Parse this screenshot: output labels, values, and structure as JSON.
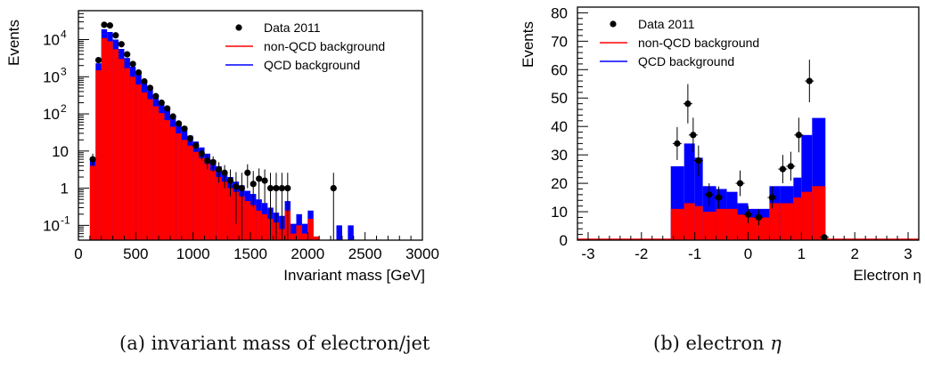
{
  "captions": {
    "a_label": "(a)",
    "a_text": "invariant mass of electron/jet",
    "b_label": "(b)",
    "b_text": "electron",
    "b_symbol": "η"
  },
  "colors": {
    "non_qcd": "#ff0000",
    "qcd": "#0000ff",
    "data": "#000000"
  },
  "chart_data": [
    {
      "type": "bar",
      "stacked": true,
      "xlabel": "Invariant mass [GeV]",
      "ylabel": "Events",
      "xlim": [
        0,
        3000
      ],
      "ylim": [
        0.04,
        60000
      ],
      "log_y": true,
      "grid": false,
      "legend_position": "top-right",
      "x_ticks": [
        "0",
        "500",
        "1000",
        "1500",
        "2000",
        "2500",
        "3000"
      ],
      "y_ticks": [
        {
          "base": "10",
          "exp": "-1",
          "plain": ""
        },
        {
          "base": "",
          "exp": "",
          "plain": "1"
        },
        {
          "base": "",
          "exp": "",
          "plain": "10"
        },
        {
          "base": "10",
          "exp": "2",
          "plain": ""
        },
        {
          "base": "10",
          "exp": "3",
          "plain": ""
        },
        {
          "base": "10",
          "exp": "4",
          "plain": ""
        }
      ],
      "legend": [
        "Data 2011",
        "non-QCD background",
        "QCD background"
      ],
      "bin_width": 50,
      "bin_low_edges": [
        100,
        150,
        200,
        250,
        300,
        350,
        400,
        450,
        500,
        550,
        600,
        650,
        700,
        750,
        800,
        850,
        900,
        950,
        1000,
        1050,
        1100,
        1150,
        1200,
        1250,
        1300,
        1350,
        1400,
        1450,
        1500,
        1550,
        1600,
        1650,
        1700,
        1750,
        1800,
        1850,
        1900,
        1950,
        2000,
        2050,
        2100,
        2150,
        2200,
        2250,
        2300,
        2350,
        2400
      ],
      "series": [
        {
          "name": "non-QCD background",
          "values": [
            4,
            1500,
            11000,
            9000,
            5500,
            3000,
            1700,
            1000,
            620,
            380,
            250,
            160,
            105,
            68,
            45,
            30,
            20,
            14,
            9.5,
            6.5,
            4.5,
            3.0,
            2.0,
            1.5,
            1.0,
            0.8,
            0.6,
            0.45,
            0.35,
            0.25,
            0.2,
            0.15,
            0.12,
            0.08,
            0.25,
            0.06,
            0.1,
            0.06,
            0.15,
            0.05,
            0.0,
            0.0,
            0.0,
            0.0,
            0.0,
            0.0,
            0.0
          ]
        },
        {
          "name": "QCD background",
          "values": [
            1.5,
            800,
            8000,
            7000,
            4500,
            2600,
            1500,
            850,
            550,
            330,
            220,
            140,
            95,
            60,
            40,
            27,
            18,
            12,
            8.5,
            6.0,
            4.0,
            2.8,
            1.9,
            1.3,
            1.0,
            0.7,
            0.6,
            0.4,
            0.35,
            0.25,
            0.2,
            0.15,
            0.1,
            0.1,
            0.2,
            0.05,
            0.1,
            0.05,
            0.1,
            0.0,
            0.0,
            0.0,
            0.0,
            0.1,
            0.0,
            0.1,
            0.0
          ]
        }
      ],
      "data_points": {
        "name": "Data 2011",
        "x": [
          125,
          175,
          225,
          275,
          325,
          375,
          425,
          475,
          525,
          575,
          625,
          675,
          725,
          775,
          825,
          875,
          925,
          975,
          1025,
          1075,
          1125,
          1175,
          1225,
          1275,
          1325,
          1375,
          1425,
          1475,
          1525,
          1575,
          1625,
          1675,
          1725,
          1775,
          1825,
          2225
        ],
        "y": [
          6,
          2800,
          25000,
          24000,
          13000,
          7500,
          4000,
          2200,
          1300,
          750,
          500,
          300,
          200,
          140,
          85,
          55,
          40,
          22,
          14,
          8.5,
          5.5,
          5.0,
          3.2,
          2.6,
          1.6,
          1.1,
          1.0,
          2.6,
          1.3,
          1.8,
          1.6,
          1.0,
          1.0,
          1.0,
          1.0,
          1.0
        ],
        "y_err_low": [
          2,
          55,
          160,
          160,
          115,
          86,
          63,
          47,
          36,
          27,
          22,
          17,
          14,
          12,
          9,
          7.4,
          6.3,
          4.7,
          3.7,
          2.9,
          2.3,
          2.2,
          1.8,
          1.6,
          1.0,
          0.99,
          0.99,
          1.6,
          0.99,
          1.3,
          1.2,
          0.99,
          0.99,
          0.99,
          0.99,
          0.99
        ],
        "y_err_high": [
          2.5,
          55,
          160,
          160,
          115,
          86,
          63,
          47,
          36,
          27,
          22,
          17,
          14,
          12,
          9,
          7.4,
          6.3,
          4.7,
          3.7,
          2.9,
          2.3,
          2.2,
          1.8,
          1.6,
          1.6,
          1.6,
          1.6,
          1.8,
          1.6,
          1.6,
          1.6,
          1.6,
          1.6,
          1.6,
          1.6,
          1.6
        ]
      }
    },
    {
      "type": "bar",
      "stacked": true,
      "xlabel": "Electron η",
      "ylabel": "Events",
      "xlim": [
        -3.2,
        3.2
      ],
      "ylim": [
        0,
        82
      ],
      "log_y": false,
      "grid": false,
      "legend_position": "top-left",
      "x_ticks": [
        "-3",
        "-2",
        "-1",
        "0",
        "1",
        "2",
        "3"
      ],
      "y_ticks": [
        "0",
        "10",
        "20",
        "30",
        "40",
        "50",
        "60",
        "70",
        "80"
      ],
      "legend": [
        "Data 2011",
        "non-QCD background",
        "QCD background"
      ],
      "bin_edges": [
        -1.45,
        -1.2,
        -1.0,
        -0.85,
        -0.6,
        -0.4,
        -0.2,
        0.0,
        0.2,
        0.4,
        0.6,
        0.85,
        1.0,
        1.2,
        1.45
      ],
      "series": [
        {
          "name": "non-QCD background",
          "values": [
            11,
            13,
            12,
            10,
            11,
            11,
            9,
            8,
            8,
            13,
            13,
            15,
            17,
            19
          ]
        },
        {
          "name": "QCD background",
          "values": [
            15,
            21,
            17,
            9,
            7,
            6,
            4,
            3,
            3,
            6,
            6,
            7,
            20,
            24
          ]
        }
      ],
      "data_points": {
        "name": "Data 2011",
        "x": [
          -1.33,
          -1.13,
          -1.03,
          -0.93,
          -0.73,
          -0.55,
          -0.15,
          0.0,
          0.2,
          0.45,
          0.65,
          0.8,
          0.95,
          1.15,
          1.43
        ],
        "y": [
          34,
          48,
          37,
          28,
          16,
          15,
          20,
          9,
          8,
          15,
          25,
          26,
          37,
          56,
          1
        ],
        "y_err": [
          5.8,
          6.9,
          6.1,
          5.3,
          4.0,
          3.9,
          4.5,
          3.0,
          2.8,
          3.9,
          5.0,
          5.1,
          6.1,
          7.5,
          1.0
        ]
      }
    }
  ]
}
